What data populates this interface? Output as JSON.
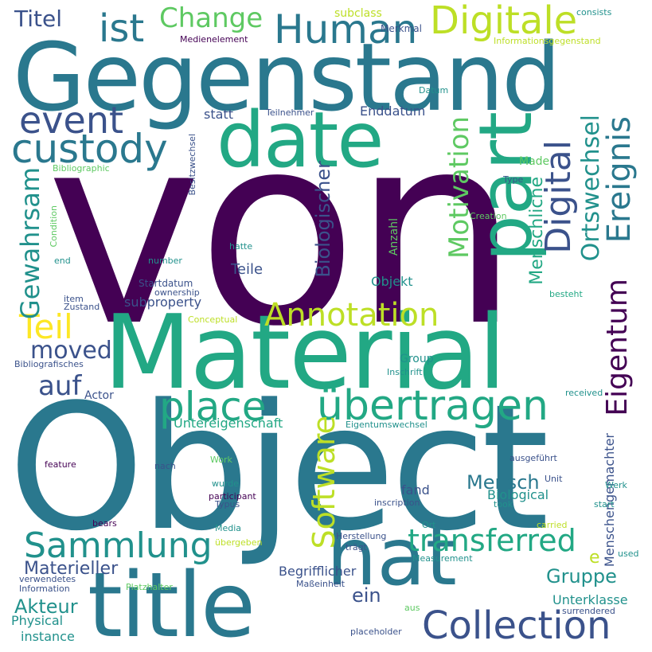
{
  "wordcloud": {
    "background": "#ffffff",
    "palette": [
      "#440154",
      "#3b528b",
      "#2a788e",
      "#21918c",
      "#22a884",
      "#5ec962",
      "#bddf26",
      "#fde725"
    ],
    "words": [
      {
        "id": "von",
        "text": "von",
        "color": "#440154"
      },
      {
        "id": "object",
        "text": "Object",
        "color": "#2a788e"
      },
      {
        "id": "gegenstand",
        "text": "Gegenstand",
        "color": "#2a788e"
      },
      {
        "id": "material",
        "text": "Material",
        "color": "#22a884"
      },
      {
        "id": "hat",
        "text": "hat",
        "color": "#2a788e"
      },
      {
        "id": "title",
        "text": "title",
        "color": "#2a788e"
      },
      {
        "id": "date",
        "text": "date",
        "color": "#22a884"
      },
      {
        "id": "part",
        "text": "part",
        "color": "#22a884"
      },
      {
        "id": "collection",
        "text": "Collection",
        "color": "#3b528b"
      },
      {
        "id": "ubertragen",
        "text": "übertragen",
        "color": "#22a884"
      },
      {
        "id": "place",
        "text": "place",
        "color": "#22a884"
      },
      {
        "id": "human",
        "text": "Human",
        "color": "#2a788e"
      },
      {
        "id": "digitale",
        "text": "Digitale",
        "color": "#bddf26"
      },
      {
        "id": "custody",
        "text": "custody",
        "color": "#2a788e"
      },
      {
        "id": "event",
        "text": "event",
        "color": "#3b528b"
      },
      {
        "id": "ist",
        "text": "ist",
        "color": "#2a788e"
      },
      {
        "id": "change",
        "text": "Change",
        "color": "#5ec962"
      },
      {
        "id": "titel",
        "text": "Titel",
        "color": "#3b528b"
      },
      {
        "id": "sammlung",
        "text": "Sammlung",
        "color": "#21918c"
      },
      {
        "id": "transferred",
        "text": "transferred",
        "color": "#22a884"
      },
      {
        "id": "annotation",
        "text": "Annotation",
        "color": "#bddf26"
      },
      {
        "id": "teil",
        "text": "Teil",
        "color": "#fde725"
      },
      {
        "id": "auf",
        "text": "auf",
        "color": "#3b528b"
      },
      {
        "id": "moved",
        "text": "moved",
        "color": "#3b528b"
      },
      {
        "id": "software",
        "text": "Software",
        "color": "#bddf26"
      },
      {
        "id": "digital",
        "text": "Digital",
        "color": "#3b528b"
      },
      {
        "id": "motivation",
        "text": "Motivation",
        "color": "#5ec962"
      },
      {
        "id": "ereignis",
        "text": "Ereignis",
        "color": "#2a788e"
      },
      {
        "id": "eigentum",
        "text": "Eigentum",
        "color": "#440154"
      },
      {
        "id": "ortswechsel",
        "text": "Ortswechsel",
        "color": "#21918c"
      },
      {
        "id": "gewahrsam",
        "text": "Gewahrsam",
        "color": "#21918c"
      },
      {
        "id": "biologischer",
        "text": "Biologischer",
        "color": "#3b528b"
      },
      {
        "id": "menschliche",
        "text": "Menschliche",
        "color": "#22a884"
      },
      {
        "id": "mensch",
        "text": "Mensch",
        "color": "#2a788e"
      },
      {
        "id": "gruppe",
        "text": "Gruppe",
        "color": "#21918c"
      },
      {
        "id": "materieller",
        "text": "Materieller",
        "color": "#3b528b"
      },
      {
        "id": "akteur",
        "text": "Akteur",
        "color": "#21918c"
      },
      {
        "id": "ein",
        "text": "ein",
        "color": "#3b528b"
      },
      {
        "id": "untereigenschaft",
        "text": "Untereigenschaft",
        "color": "#22a884"
      },
      {
        "id": "teile",
        "text": "Teile",
        "color": "#3b528b"
      },
      {
        "id": "subproperty",
        "text": "subproperty",
        "color": "#3b528b"
      },
      {
        "id": "statt",
        "text": "statt",
        "color": "#3b528b"
      },
      {
        "id": "enddatum",
        "text": "Enddatum",
        "color": "#3b528b"
      },
      {
        "id": "objekt",
        "text": "Objekt",
        "color": "#21918c"
      },
      {
        "id": "made",
        "text": "Made",
        "color": "#5ec962"
      },
      {
        "id": "fand",
        "text": "fand",
        "color": "#3b528b"
      },
      {
        "id": "biological",
        "text": "Biological",
        "color": "#21918c"
      },
      {
        "id": "menschengemachter",
        "text": "Menschengemachter",
        "color": "#3b528b"
      },
      {
        "id": "unterklasse",
        "text": "Unterklasse",
        "color": "#21918c"
      },
      {
        "id": "begrifflicher",
        "text": "Begrifflicher",
        "color": "#3b528b"
      },
      {
        "id": "group",
        "text": "Group",
        "color": "#21918c"
      },
      {
        "id": "anzahl",
        "text": "Anzahl",
        "color": "#5ec962"
      },
      {
        "id": "startdatum",
        "text": "Startdatum",
        "color": "#3b528b"
      },
      {
        "id": "physical",
        "text": "Physical",
        "color": "#21918c"
      },
      {
        "id": "instance",
        "text": "instance",
        "color": "#21918c"
      },
      {
        "id": "actor",
        "text": "Actor",
        "color": "#3b528b"
      },
      {
        "id": "e",
        "text": "e",
        "color": "#bddf26"
      },
      {
        "id": "subclass",
        "text": "subclass",
        "color": "#bddf26"
      },
      {
        "id": "merkmal",
        "text": "Merkmal",
        "color": "#3b528b"
      },
      {
        "id": "medienelement",
        "text": "Medienelement",
        "color": "#440154"
      },
      {
        "id": "consists",
        "text": "consists",
        "color": "#21918c"
      },
      {
        "id": "informationsgegenstand",
        "text": "Informationsgegenstand",
        "color": "#bddf26"
      },
      {
        "id": "datum",
        "text": "Datum",
        "color": "#21918c"
      },
      {
        "id": "teilnehmer",
        "text": "Teilnehmer",
        "color": "#3b528b"
      },
      {
        "id": "besitzwechsel",
        "text": "Besitzwechsel",
        "color": "#3b528b"
      },
      {
        "id": "bibliographic",
        "text": "Bibliographic",
        "color": "#5ec962"
      },
      {
        "id": "type",
        "text": "Type",
        "color": "#3b528b"
      },
      {
        "id": "creation",
        "text": "Creation",
        "color": "#5ec962"
      },
      {
        "id": "condition",
        "text": "Condition",
        "color": "#5ec962"
      },
      {
        "id": "end",
        "text": "end",
        "color": "#21918c"
      },
      {
        "id": "hatte",
        "text": "hatte",
        "color": "#21918c"
      },
      {
        "id": "number",
        "text": "number",
        "color": "#21918c"
      },
      {
        "id": "ownership",
        "text": "ownership",
        "color": "#3b528b"
      },
      {
        "id": "item",
        "text": "item",
        "color": "#3b528b"
      },
      {
        "id": "zustand",
        "text": "Zustand",
        "color": "#3b528b"
      },
      {
        "id": "besteht",
        "text": "besteht",
        "color": "#22a884"
      },
      {
        "id": "conceptual",
        "text": "Conceptual",
        "color": "#bddf26"
      },
      {
        "id": "bibliografisches",
        "text": "Bibliografisches",
        "color": "#3b528b"
      },
      {
        "id": "inschrift",
        "text": "Inschrift",
        "color": "#21918c"
      },
      {
        "id": "received",
        "text": "received",
        "color": "#21918c"
      },
      {
        "id": "eigentumswechsel",
        "text": "Eigentumswechsel",
        "color": "#21918c"
      },
      {
        "id": "feature",
        "text": "feature",
        "color": "#440154"
      },
      {
        "id": "work",
        "text": "Work",
        "color": "#5ec962"
      },
      {
        "id": "nach",
        "text": "nach",
        "color": "#3b528b"
      },
      {
        "id": "ausgefuhrt",
        "text": "ausgeführt",
        "color": "#3b528b"
      },
      {
        "id": "wurde",
        "text": "wurde",
        "color": "#21918c"
      },
      {
        "id": "participant",
        "text": "participant",
        "color": "#440154"
      },
      {
        "id": "typus",
        "text": "Typus",
        "color": "#3b528b"
      },
      {
        "id": "unit",
        "text": "Unit",
        "color": "#3b528b"
      },
      {
        "id": "werk",
        "text": "Werk",
        "color": "#21918c"
      },
      {
        "id": "inscription",
        "text": "inscription",
        "color": "#3b528b"
      },
      {
        "id": "took",
        "text": "took",
        "color": "#21918c"
      },
      {
        "id": "start",
        "text": "start",
        "color": "#21918c"
      },
      {
        "id": "bears",
        "text": "bears",
        "color": "#440154"
      },
      {
        "id": "media",
        "text": "Media",
        "color": "#21918c"
      },
      {
        "id": "ort",
        "text": "Ort",
        "color": "#21918c"
      },
      {
        "id": "carried",
        "text": "carried",
        "color": "#bddf26"
      },
      {
        "id": "herstellung",
        "text": "Herstellung",
        "color": "#3b528b"
      },
      {
        "id": "ubergeben",
        "text": "übergeben",
        "color": "#bddf26"
      },
      {
        "id": "tragt",
        "text": "trägt",
        "color": "#3b528b"
      },
      {
        "id": "used",
        "text": "used",
        "color": "#21918c"
      },
      {
        "id": "verwendetes",
        "text": "verwendetes",
        "color": "#3b528b"
      },
      {
        "id": "measurement",
        "text": "Measurement",
        "color": "#21918c"
      },
      {
        "id": "information",
        "text": "Information",
        "color": "#3b528b"
      },
      {
        "id": "platzhalter",
        "text": "Platzhalter",
        "color": "#5ec962"
      },
      {
        "id": "masseinheit",
        "text": "Maßeinheit",
        "color": "#3b528b"
      },
      {
        "id": "aus",
        "text": "aus",
        "color": "#5ec962"
      },
      {
        "id": "surrendered",
        "text": "surrendered",
        "color": "#3b528b"
      },
      {
        "id": "placeholder",
        "text": "placeholder",
        "color": "#3b528b"
      }
    ]
  }
}
